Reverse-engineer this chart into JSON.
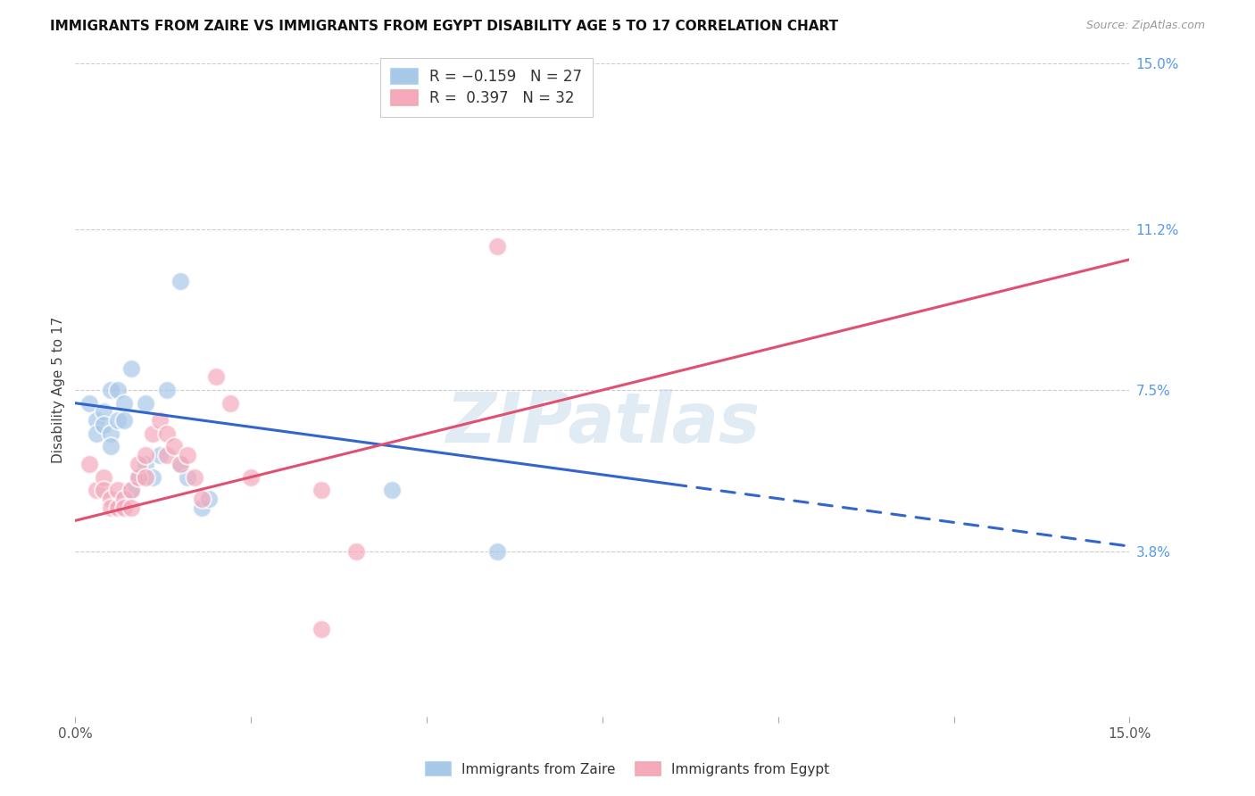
{
  "title": "IMMIGRANTS FROM ZAIRE VS IMMIGRANTS FROM EGYPT DISABILITY AGE 5 TO 17 CORRELATION CHART",
  "source": "Source: ZipAtlas.com",
  "ylabel": "Disability Age 5 to 17",
  "xlim": [
    0.0,
    0.15
  ],
  "ylim": [
    0.0,
    0.15
  ],
  "zaire_color": "#a8c8e8",
  "egypt_color": "#f4aabc",
  "zaire_line_color": "#3366cc",
  "egypt_line_color": "#e05070",
  "watermark": "ZIPatlas",
  "zaire_points": [
    [
      0.002,
      0.072
    ],
    [
      0.003,
      0.068
    ],
    [
      0.003,
      0.065
    ],
    [
      0.004,
      0.07
    ],
    [
      0.004,
      0.067
    ],
    [
      0.005,
      0.075
    ],
    [
      0.005,
      0.065
    ],
    [
      0.005,
      0.062
    ],
    [
      0.006,
      0.075
    ],
    [
      0.006,
      0.068
    ],
    [
      0.007,
      0.072
    ],
    [
      0.007,
      0.068
    ],
    [
      0.008,
      0.08
    ],
    [
      0.008,
      0.052
    ],
    [
      0.009,
      0.055
    ],
    [
      0.01,
      0.058
    ],
    [
      0.01,
      0.072
    ],
    [
      0.011,
      0.055
    ],
    [
      0.012,
      0.06
    ],
    [
      0.013,
      0.075
    ],
    [
      0.015,
      0.1
    ],
    [
      0.015,
      0.058
    ],
    [
      0.016,
      0.055
    ],
    [
      0.018,
      0.048
    ],
    [
      0.019,
      0.05
    ],
    [
      0.045,
      0.052
    ],
    [
      0.06,
      0.038
    ]
  ],
  "egypt_points": [
    [
      0.002,
      0.058
    ],
    [
      0.003,
      0.052
    ],
    [
      0.004,
      0.055
    ],
    [
      0.004,
      0.052
    ],
    [
      0.005,
      0.05
    ],
    [
      0.005,
      0.048
    ],
    [
      0.006,
      0.052
    ],
    [
      0.006,
      0.048
    ],
    [
      0.007,
      0.05
    ],
    [
      0.007,
      0.048
    ],
    [
      0.008,
      0.052
    ],
    [
      0.008,
      0.048
    ],
    [
      0.009,
      0.055
    ],
    [
      0.009,
      0.058
    ],
    [
      0.01,
      0.06
    ],
    [
      0.01,
      0.055
    ],
    [
      0.011,
      0.065
    ],
    [
      0.012,
      0.068
    ],
    [
      0.013,
      0.065
    ],
    [
      0.013,
      0.06
    ],
    [
      0.014,
      0.062
    ],
    [
      0.015,
      0.058
    ],
    [
      0.016,
      0.06
    ],
    [
      0.017,
      0.055
    ],
    [
      0.018,
      0.05
    ],
    [
      0.02,
      0.078
    ],
    [
      0.022,
      0.072
    ],
    [
      0.025,
      0.055
    ],
    [
      0.035,
      0.052
    ],
    [
      0.04,
      0.038
    ],
    [
      0.06,
      0.108
    ],
    [
      0.035,
      0.02
    ]
  ],
  "grid_color": "#cccccc",
  "bg_color": "#ffffff",
  "zaire_R": -0.159,
  "zaire_N": 27,
  "egypt_R": 0.397,
  "egypt_N": 32
}
